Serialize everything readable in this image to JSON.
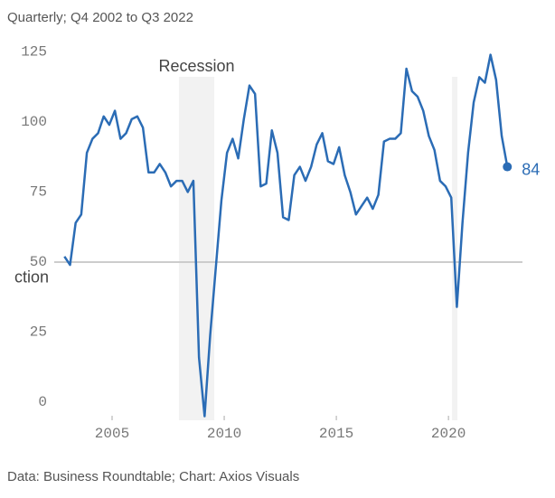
{
  "chart_data": {
    "type": "line",
    "subtitle": "Quarterly; Q4 2002 to Q3 2022",
    "source": "Data: Business Roundtable; Chart: Axios Visuals",
    "annotation": "ction",
    "reference_line": 50,
    "grid": false,
    "recessions": [
      {
        "label": "Recession",
        "start": 2007.98,
        "end": 2009.56
      },
      {
        "start": 2020.16,
        "end": 2020.4
      }
    ],
    "x": [
      2002.875,
      2003.125,
      2003.375,
      2003.625,
      2003.875,
      2004.125,
      2004.375,
      2004.625,
      2004.875,
      2005.125,
      2005.375,
      2005.625,
      2005.875,
      2006.125,
      2006.375,
      2006.625,
      2006.875,
      2007.125,
      2007.375,
      2007.625,
      2007.875,
      2008.125,
      2008.375,
      2008.625,
      2008.875,
      2009.125,
      2009.375,
      2009.625,
      2009.875,
      2010.125,
      2010.375,
      2010.625,
      2010.875,
      2011.125,
      2011.375,
      2011.625,
      2011.875,
      2012.125,
      2012.375,
      2012.625,
      2012.875,
      2013.125,
      2013.375,
      2013.625,
      2013.875,
      2014.125,
      2014.375,
      2014.625,
      2014.875,
      2015.125,
      2015.375,
      2015.625,
      2015.875,
      2016.125,
      2016.375,
      2016.625,
      2016.875,
      2017.125,
      2017.375,
      2017.625,
      2017.875,
      2018.125,
      2018.375,
      2018.625,
      2018.875,
      2019.125,
      2019.375,
      2019.625,
      2019.875,
      2020.125,
      2020.375,
      2020.625,
      2020.875,
      2021.125,
      2021.375,
      2021.625,
      2021.875,
      2022.125,
      2022.375,
      2022.625
    ],
    "series": [
      {
        "color": "#2b6cb5",
        "values": [
          52,
          49,
          64,
          67,
          89,
          94,
          96,
          102,
          99,
          104,
          94,
          96,
          101,
          102,
          98,
          82,
          82,
          85,
          82,
          77,
          79,
          79,
          75,
          79,
          16,
          -5,
          24,
          48,
          72,
          89,
          94,
          87,
          101,
          113,
          110,
          77,
          78,
          97,
          89,
          66,
          65,
          81,
          84,
          79,
          84,
          92,
          96,
          86,
          85,
          91,
          81,
          75,
          67,
          70,
          73,
          69,
          74,
          93,
          94,
          94,
          96,
          119,
          111,
          109,
          104,
          95,
          90,
          79,
          77,
          73,
          34,
          64,
          89,
          107,
          116,
          114,
          124,
          115,
          95,
          84
        ]
      }
    ],
    "xlim": [
      2002.42,
      2023.3
    ],
    "ylim": [
      -6.45,
      127.4
    ],
    "xticks": [
      2005,
      2010,
      2015,
      2020
    ],
    "yticks": [
      0,
      25,
      50,
      75,
      100,
      125
    ]
  }
}
